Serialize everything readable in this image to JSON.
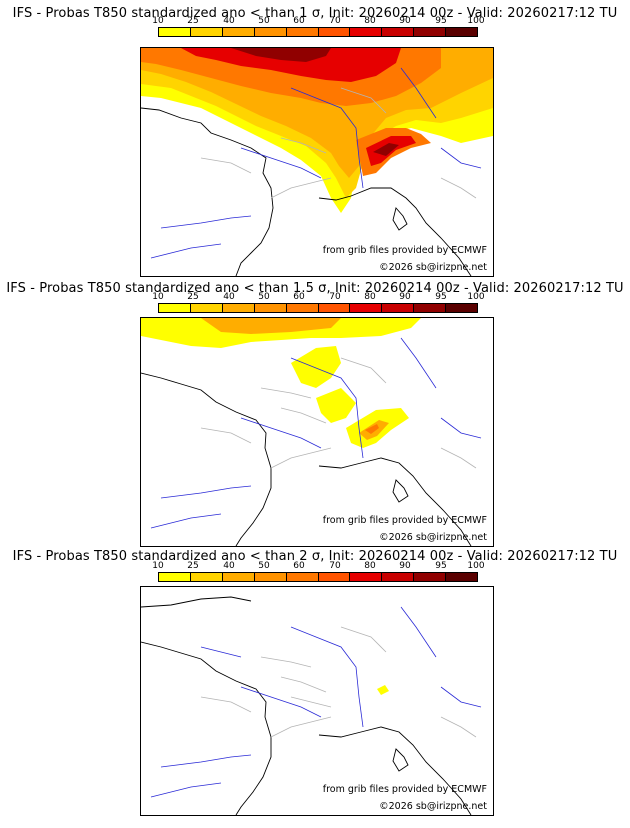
{
  "colors": {
    "scale": [
      "#ffff00",
      "#ffd400",
      "#ffad00",
      "#ff9300",
      "#ff7800",
      "#ff5400",
      "#e60000",
      "#c80000",
      "#900000",
      "#5a0000"
    ],
    "river": "#2a2ad6",
    "border": "#b4b4b4",
    "coast": "#000000"
  },
  "scale_labels": [
    "10",
    "25",
    "40",
    "50",
    "60",
    "70",
    "80",
    "90",
    "95",
    "100"
  ],
  "panels": [
    {
      "title": "IFS - Probas T850  standardized ano < than 1 σ, Init: 20260214 00z - Valid: 20260217:12 TU",
      "credit_line1": "from grib files provided by ECMWF",
      "credit_line2": "©2026 sb@irizpne.net",
      "threshold_sigma": 1
    },
    {
      "title": "IFS - Probas T850  standardized ano < than 1.5 σ, Init: 20260214 00z - Valid: 20260217:12 TU",
      "credit_line1": "from grib files provided by ECMWF",
      "credit_line2": "©2026 sb@irizpne.net",
      "threshold_sigma": 1.5
    },
    {
      "title": "IFS - Probas T850  standardized ano < than 2 σ, Init: 20260214 00z - Valid: 20260217:12 TU",
      "credit_line1": "from grib files provided by ECMWF",
      "credit_line2": "©2026 sb@irizpne.net",
      "threshold_sigma": 2
    }
  ]
}
